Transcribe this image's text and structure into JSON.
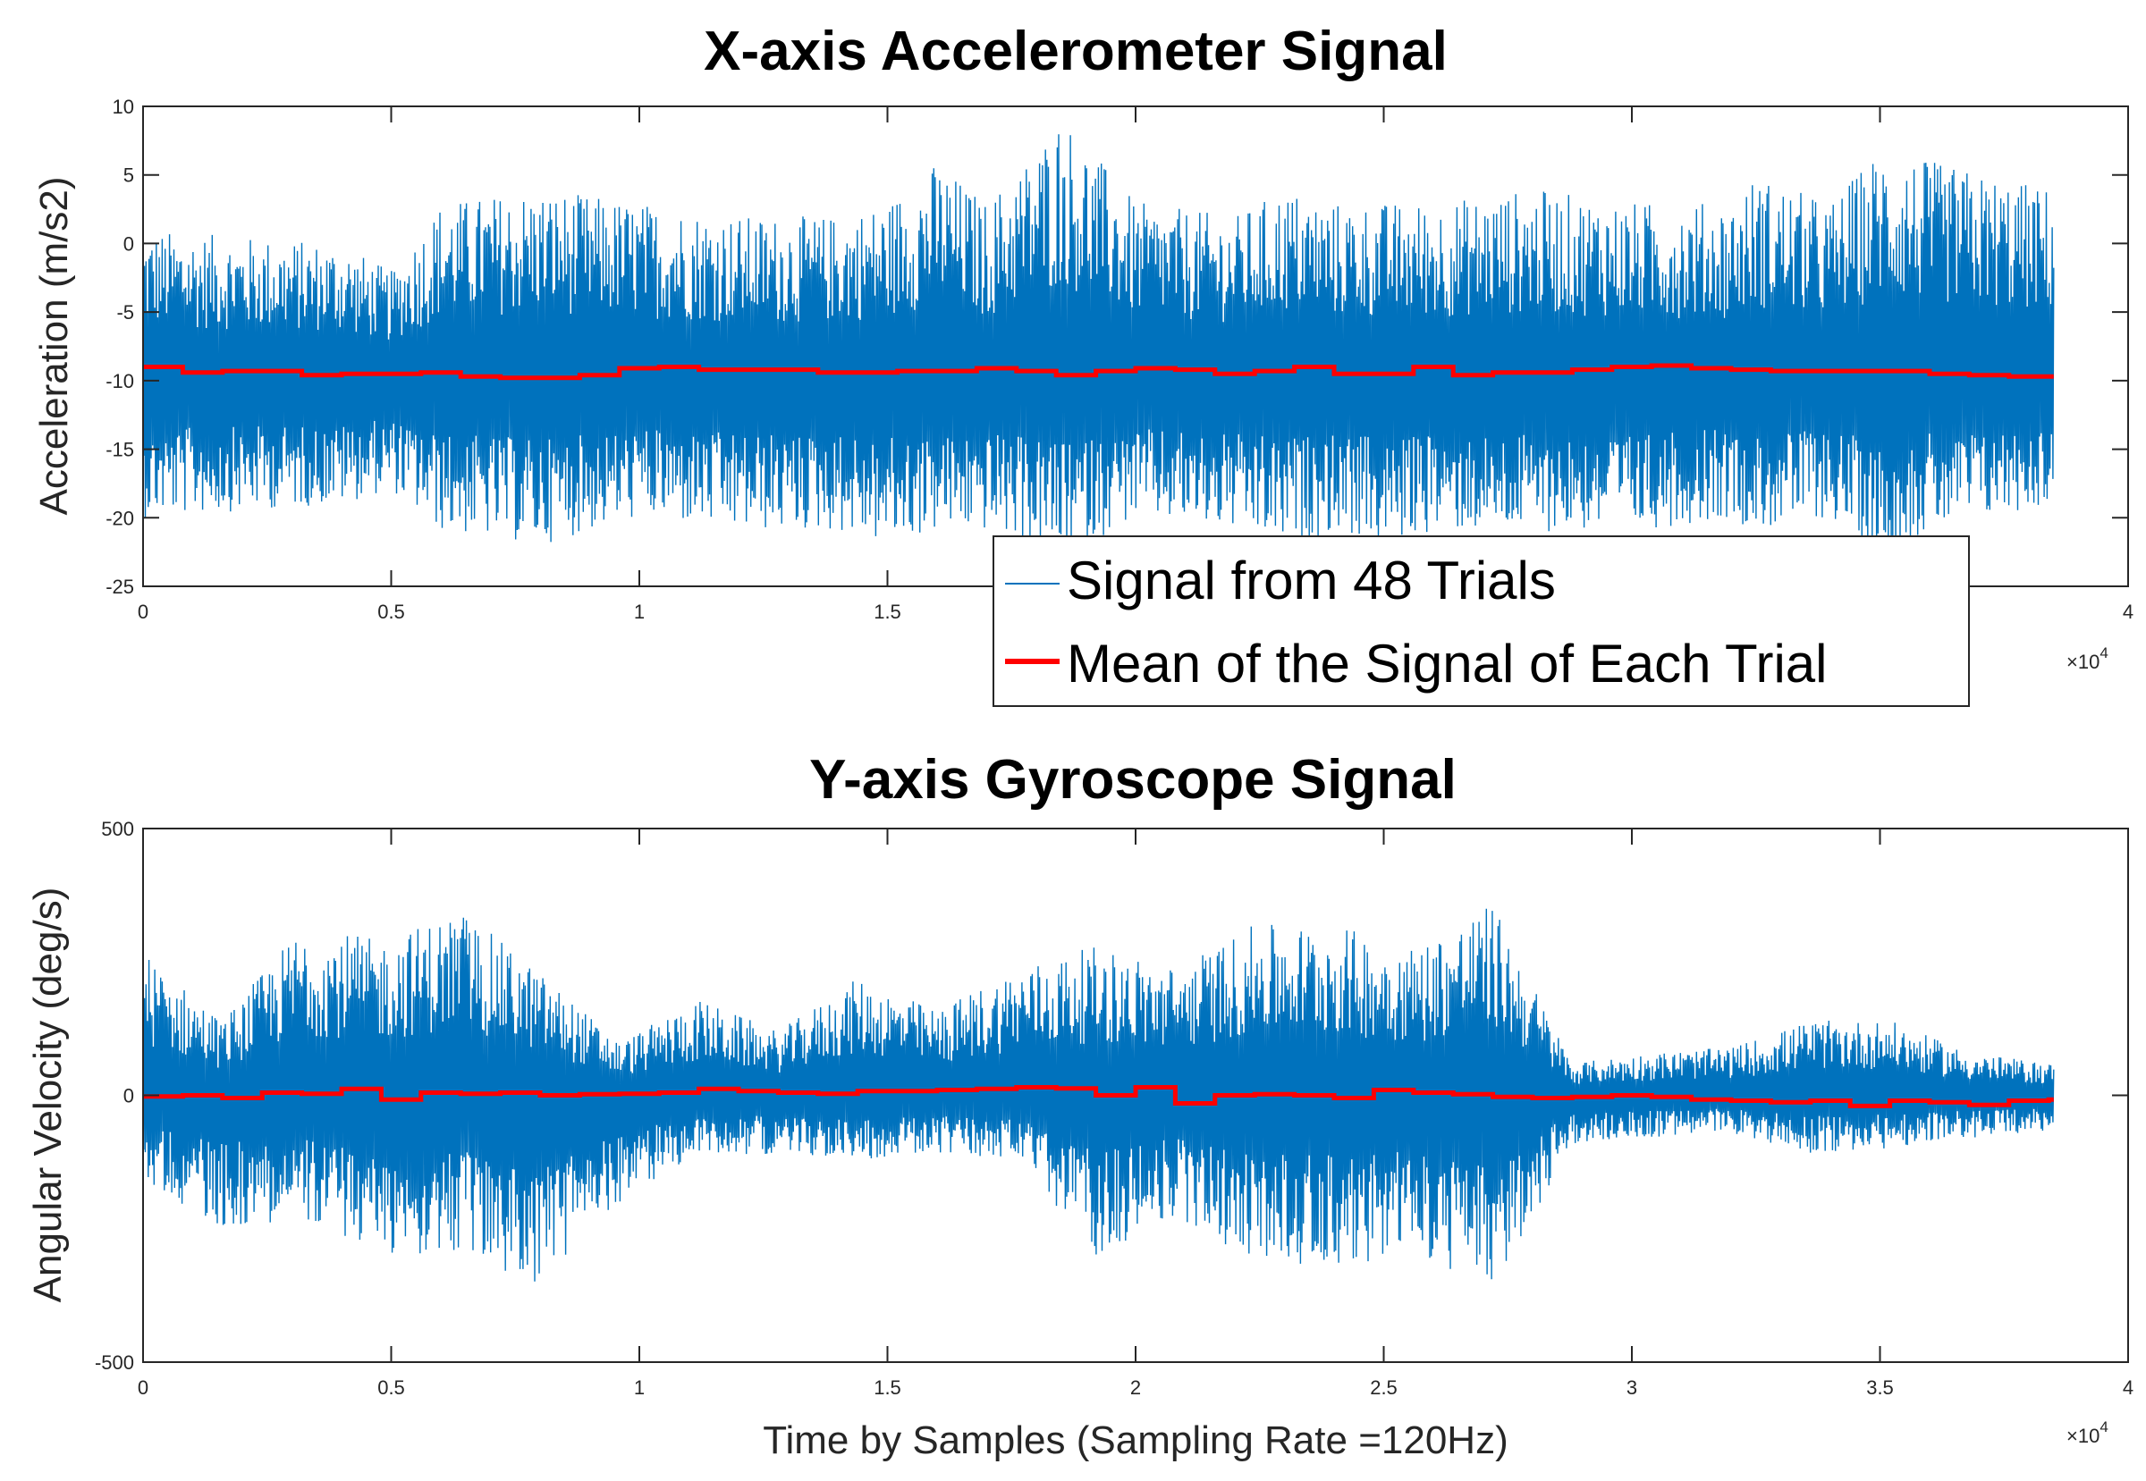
{
  "chart_data": [
    {
      "type": "line",
      "title": "X-axis Accelerometer Signal",
      "xlabel": "",
      "ylabel": "Acceleration (m/s2)",
      "xlim": [
        0,
        40000
      ],
      "ylim": [
        -25,
        10
      ],
      "x_ticks": [
        0,
        5000,
        10000,
        15000,
        20000,
        25000,
        30000,
        35000,
        40000
      ],
      "x_tick_labels": [
        "0",
        "0.5",
        "1",
        "1.5",
        "2",
        "2.5",
        "3",
        "3.5",
        "4"
      ],
      "x_exponent_label": "×10",
      "x_exponent_power": "4",
      "y_ticks": [
        -25,
        -20,
        -15,
        -10,
        -5,
        0,
        5,
        10
      ],
      "y_tick_labels": [
        "-25",
        "-20",
        "-15",
        "-10",
        "-5",
        "0",
        "5",
        "10"
      ],
      "grid": false,
      "legend": {
        "position": "bottom-center",
        "entries": [
          "Signal from 48 Trials",
          "Mean of the Signal of Each Trial"
        ]
      },
      "series": [
        {
          "name": "Signal from 48 Trials",
          "color": "#0072bd",
          "x_range": [
            0,
            38500
          ],
          "trials": 48,
          "typical_range": [
            -17,
            -3
          ],
          "peak_envelope": [
            [
              0,
              -20,
              1
            ],
            [
              4000,
              -19,
              0
            ],
            [
              5000,
              -18,
              -2
            ],
            [
              6000,
              -21,
              3
            ],
            [
              8000,
              -22,
              4
            ],
            [
              10000,
              -20,
              3
            ],
            [
              12000,
              -21,
              2
            ],
            [
              14000,
              -21,
              2
            ],
            [
              15000,
              -22,
              3
            ],
            [
              16000,
              -21,
              6
            ],
            [
              17000,
              -21,
              3
            ],
            [
              18000,
              -22,
              7
            ],
            [
              18500,
              -23,
              9.5
            ],
            [
              20000,
              -20,
              3
            ],
            [
              22000,
              -21,
              2
            ],
            [
              23000,
              -22,
              4
            ],
            [
              24000,
              -21,
              3
            ],
            [
              25000,
              -22,
              3
            ],
            [
              26000,
              -21,
              3
            ],
            [
              28000,
              -21,
              4
            ],
            [
              30000,
              -21,
              3
            ],
            [
              32000,
              -20,
              3
            ],
            [
              32500,
              -21,
              5
            ],
            [
              34000,
              -20,
              3
            ],
            [
              35000,
              -23,
              7
            ],
            [
              36000,
              -21,
              6
            ],
            [
              38500,
              -19,
              4
            ]
          ]
        },
        {
          "name": "Mean of the Signal of Each Trial",
          "color": "#ff0000",
          "step_x": [
            0,
            800,
            1600,
            2400,
            3200,
            4000,
            4800,
            5600,
            6400,
            7200,
            8000,
            8800,
            9600,
            10400,
            11200,
            12000,
            12800,
            13600,
            14400,
            15200,
            16000,
            16800,
            17600,
            18400,
            19200,
            20000,
            20800,
            21600,
            22400,
            23200,
            24000,
            24800,
            25600,
            26400,
            27200,
            28000,
            28800,
            29600,
            30400,
            31200,
            32000,
            32800,
            33600,
            34400,
            35200,
            36000,
            36800,
            37600,
            38400
          ],
          "step_values": [
            -9.0,
            -9.4,
            -9.3,
            -9.3,
            -9.6,
            -9.5,
            -9.5,
            -9.4,
            -9.7,
            -9.8,
            -9.8,
            -9.6,
            -9.1,
            -9.0,
            -9.2,
            -9.2,
            -9.2,
            -9.4,
            -9.4,
            -9.3,
            -9.3,
            -9.1,
            -9.3,
            -9.6,
            -9.3,
            -9.1,
            -9.2,
            -9.5,
            -9.3,
            -9.0,
            -9.5,
            -9.5,
            -9.0,
            -9.6,
            -9.4,
            -9.4,
            -9.2,
            -9.0,
            -8.9,
            -9.1,
            -9.2,
            -9.3,
            -9.3,
            -9.3,
            -9.3,
            -9.5,
            -9.6,
            -9.7,
            -9.7
          ]
        }
      ]
    },
    {
      "type": "line",
      "title": "Y-axis Gyroscope Signal",
      "xlabel": "Time by Samples (Sampling Rate =120Hz)",
      "ylabel": "Angular Velocity (deg/s)",
      "xlim": [
        0,
        40000
      ],
      "ylim": [
        -500,
        500
      ],
      "x_ticks": [
        0,
        5000,
        10000,
        15000,
        20000,
        25000,
        30000,
        35000,
        40000
      ],
      "x_tick_labels": [
        "0",
        "0.5",
        "1",
        "1.5",
        "2",
        "2.5",
        "3",
        "3.5",
        "4"
      ],
      "x_exponent_label": "×10",
      "x_exponent_power": "4",
      "y_ticks": [
        -500,
        0,
        500
      ],
      "y_tick_labels": [
        "-500",
        "0",
        "500"
      ],
      "grid": false,
      "series": [
        {
          "name": "Signal from 48 Trials",
          "color": "#0072bd",
          "x_range": [
            0,
            38500
          ],
          "peak_envelope": [
            [
              0,
              -160,
              270
            ],
            [
              1600,
              -250,
              140
            ],
            [
              3200,
              -230,
              320
            ],
            [
              4800,
              -300,
              290
            ],
            [
              6400,
              -300,
              350
            ],
            [
              8000,
              -360,
              230
            ],
            [
              9600,
              -200,
              100
            ],
            [
              11200,
              -110,
              180
            ],
            [
              12800,
              -110,
              120
            ],
            [
              14400,
              -120,
              220
            ],
            [
              16000,
              -110,
              160
            ],
            [
              17600,
              -120,
              240
            ],
            [
              19200,
              -300,
              280
            ],
            [
              20800,
              -230,
              240
            ],
            [
              22400,
              -310,
              320
            ],
            [
              24000,
              -320,
              320
            ],
            [
              25600,
              -300,
              280
            ],
            [
              27200,
              -370,
              360
            ],
            [
              28800,
              -90,
              60
            ],
            [
              30400,
              -80,
              80
            ],
            [
              32000,
              -70,
              90
            ],
            [
              33600,
              -110,
              140
            ],
            [
              35200,
              -100,
              140
            ],
            [
              36800,
              -80,
              80
            ],
            [
              38400,
              -70,
              60
            ]
          ]
        },
        {
          "name": "Mean of the Signal of Each Trial",
          "color": "#ff0000",
          "step_x": [
            0,
            800,
            1600,
            2400,
            3200,
            4000,
            4800,
            5600,
            6400,
            7200,
            8000,
            8800,
            9600,
            10400,
            11200,
            12000,
            12800,
            13600,
            14400,
            15200,
            16000,
            16800,
            17600,
            18400,
            19200,
            20000,
            20800,
            21600,
            22400,
            23200,
            24000,
            24800,
            25600,
            26400,
            27200,
            28000,
            28800,
            29600,
            30400,
            31200,
            32000,
            32800,
            33600,
            34400,
            35200,
            36000,
            36800,
            37600,
            38400
          ],
          "step_values": [
            -2,
            0,
            -5,
            5,
            3,
            12,
            -8,
            5,
            3,
            5,
            0,
            2,
            3,
            5,
            12,
            8,
            5,
            3,
            8,
            8,
            10,
            12,
            15,
            13,
            0,
            15,
            -15,
            0,
            2,
            0,
            -5,
            10,
            5,
            2,
            -3,
            -5,
            -3,
            0,
            -3,
            -8,
            -10,
            -13,
            -10,
            -20,
            -10,
            -13,
            -18,
            -10,
            -8
          ]
        }
      ]
    }
  ]
}
